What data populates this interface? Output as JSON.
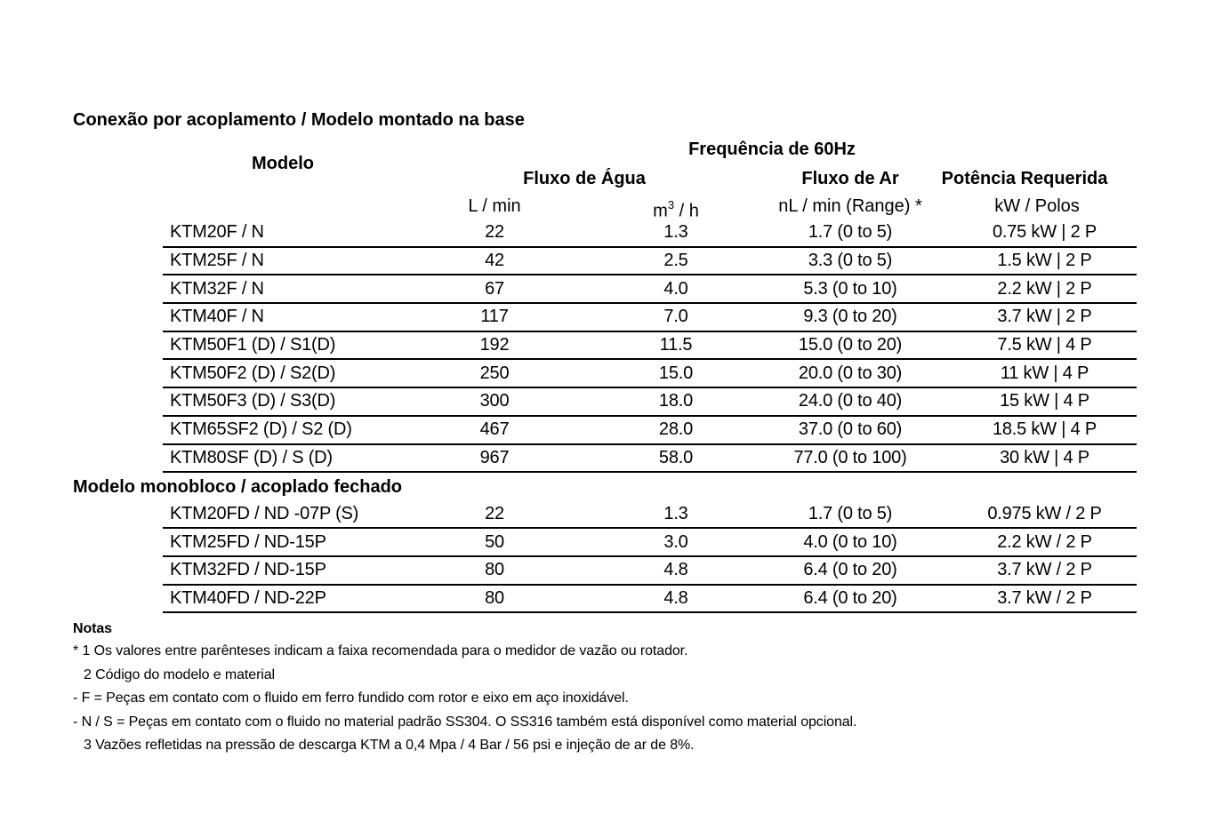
{
  "doc": {
    "title": "Conexão por acoplamento / Modelo montado na base"
  },
  "table": {
    "header": {
      "model": "Modelo",
      "frequency": "Frequência de 60Hz",
      "water_flow": "Fluxo de Água",
      "air_flow": "Fluxo de Ar",
      "power": "Potência Requerida",
      "unit_l_min": "L / min",
      "unit_m3_base": "m",
      "unit_m3_sup": "3",
      "unit_m3_rest": " / h",
      "unit_nl_min": "nL / min (Range) *",
      "unit_kw_polos": "kW / Polos"
    },
    "sections": [
      {
        "title": "",
        "rows": [
          [
            "KTM20F / N",
            "22",
            "1.3",
            "1.7 (0 to 5)",
            "0.75 kW | 2 P"
          ],
          [
            "KTM25F / N",
            "42",
            "2.5",
            "3.3 (0 to 5)",
            "1.5 kW | 2 P"
          ],
          [
            "KTM32F / N",
            "67",
            "4.0",
            "5.3 (0 to 10)",
            "2.2 kW | 2 P"
          ],
          [
            "KTM40F / N",
            "117",
            "7.0",
            "9.3 (0 to 20)",
            "3.7 kW | 2 P"
          ],
          [
            "KTM50F1 (D) / S1(D)",
            "192",
            "11.5",
            "15.0 (0 to 20)",
            "7.5 kW | 4 P"
          ],
          [
            "KTM50F2 (D) / S2(D)",
            "250",
            "15.0",
            "20.0 (0 to 30)",
            "11 kW | 4 P"
          ],
          [
            "KTM50F3 (D) / S3(D)",
            "300",
            "18.0",
            "24.0 (0 to 40)",
            "15 kW | 4 P"
          ],
          [
            "KTM65SF2 (D) / S2 (D)",
            "467",
            "28.0",
            "37.0 (0 to 60)",
            "18.5 kW | 4 P"
          ],
          [
            "KTM80SF (D) / S (D)",
            "967",
            "58.0",
            "77.0 (0 to 100)",
            "30 kW | 4 P"
          ]
        ]
      },
      {
        "title": "Modelo monobloco / acoplado fechado",
        "rows": [
          [
            "KTM20FD / ND -07P (S)",
            "22",
            "1.3",
            "1.7 (0 to 5)",
            "0.975 kW / 2 P"
          ],
          [
            "KTM25FD / ND-15P",
            "50",
            "3.0",
            "4.0 (0 to 10)",
            "2.2 kW / 2 P"
          ],
          [
            "KTM32FD / ND-15P",
            "80",
            "4.8",
            "6.4 (0 to 20)",
            "3.7 kW / 2 P"
          ],
          [
            "KTM40FD / ND-22P",
            "80",
            "4.8",
            "6.4 (0 to 20)",
            "3.7 kW / 2 P"
          ]
        ]
      }
    ]
  },
  "notes": {
    "title": "Notas",
    "lines": [
      {
        "text": "* 1 Os valores entre parênteses indicam a faixa recomendada para o medidor de vazão ou rotador.",
        "indent": false
      },
      {
        "text": "2 Código do modelo e material",
        "indent": true
      },
      {
        "text": "- F = Peças em contato com o fluido em ferro fundido com rotor e eixo em aço inoxidável.",
        "indent": false
      },
      {
        "text": "- N / S = Peças em contato com o fluido no material padrão SS304. O SS316 também está disponível como material opcional.",
        "indent": false
      },
      {
        "text": "3 Vazões refletidas na pressão de descarga KTM a 0,4 Mpa / 4 Bar / 56 psi e injeção de ar de 8%.",
        "indent": true
      }
    ]
  }
}
